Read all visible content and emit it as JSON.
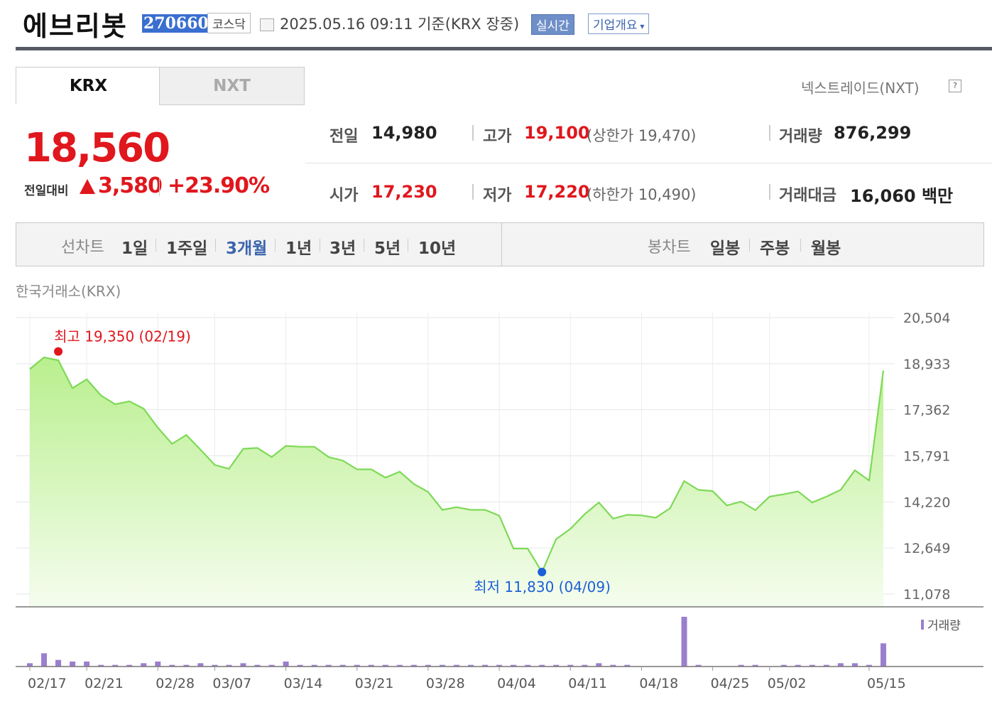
{
  "header": {
    "name": "에브리봇",
    "code": "270660",
    "market": "코스닥",
    "datetime": "2025.05.16 09:11  기준(KRX 장중)",
    "realtime_label": "실시간",
    "company_label": "기업개요"
  },
  "tabs": [
    "KRX",
    "NXT"
  ],
  "nxt_info": "넥스트레이드(NXT)",
  "nxt_help": "?",
  "price": {
    "current": "18,560",
    "prev_label": "전일대비",
    "change": "3,580",
    "change_pct": "+23.90%",
    "direction": "up"
  },
  "stats": {
    "prev_label": "전일",
    "prev_value": "14,980",
    "high_label": "고가",
    "high_value": "19,100",
    "upper_limit": "(상한가 19,470)",
    "volume_label": "거래량",
    "volume_value": "876,299",
    "open_label": "시가",
    "open_value": "17,230",
    "low_label": "저가",
    "low_value": "17,220",
    "lower_limit": "(하한가 10,490)",
    "amount_label": "거래대금",
    "amount_value": "16,060 백만"
  },
  "periods": {
    "line_label": "선차트",
    "items": [
      "1일",
      "1주일",
      "3개월",
      "1년",
      "3년",
      "5년",
      "10년"
    ],
    "selected": "3개월",
    "candle_label": "봉차트",
    "candle_items": [
      "일봉",
      "주봉",
      "월봉"
    ]
  },
  "source_label": "한국거래소(KRX)",
  "colors": {
    "up": "#e0171d",
    "down": "#1c5fd8",
    "line": "#7ed957",
    "volume": "#9b7fce"
  },
  "chart_data": {
    "type": "area",
    "y_ticks": [
      "20,504",
      "18,933",
      "17,362",
      "15,791",
      "14,220",
      "12,649",
      "11,078"
    ],
    "ylim": [
      11078,
      20504
    ],
    "x_tick_labels": [
      "02/17",
      "02/21",
      "02/28",
      "03/07",
      "03/14",
      "03/21",
      "03/28",
      "04/04",
      "04/11",
      "04/18",
      "04/25",
      "05/02",
      "05/15"
    ],
    "x_tick_index": [
      0,
      4,
      9,
      13,
      18,
      23,
      28,
      33,
      38,
      43,
      48,
      52,
      59
    ],
    "annotations": {
      "high_label": "최고 19,350 (02/19)",
      "high_index": 2,
      "high_value": 19350,
      "low_label": "최저 11,830 (04/09)",
      "low_index": 36,
      "low_value": 11830
    },
    "series": [
      {
        "values": [
          18750,
          19150,
          19050,
          18100,
          18400,
          17850,
          17550,
          17650,
          17400,
          16750,
          16200,
          16500,
          16000,
          15480,
          15350,
          16030,
          16060,
          15750,
          16130,
          16100,
          16100,
          15750,
          15630,
          15330,
          15330,
          15050,
          15250,
          14830,
          14560,
          13950,
          14040,
          13950,
          13950,
          13750,
          12630,
          12630,
          11830,
          12950,
          13300,
          13800,
          14200,
          13650,
          13780,
          13760,
          13680,
          14000,
          14930,
          14630,
          14590,
          14100,
          14230,
          13940,
          14400,
          14480,
          14580,
          14200,
          14400,
          14630,
          15300,
          14950,
          18700
        ]
      }
    ],
    "volume_label": "거래량",
    "volume": [
      2,
      8,
      4,
      3,
      3,
      1,
      1,
      1,
      2,
      3,
      1,
      1,
      2,
      1,
      1,
      2,
      1,
      1,
      3,
      1,
      1,
      1,
      1,
      1,
      1,
      1,
      1,
      1,
      1,
      1,
      1,
      1,
      1,
      1,
      1,
      1,
      1,
      1,
      1,
      1,
      2,
      1,
      1,
      0,
      0,
      0,
      30,
      1,
      0,
      0,
      1,
      1,
      0,
      1,
      1,
      1,
      1,
      2,
      2,
      1,
      14
    ]
  }
}
